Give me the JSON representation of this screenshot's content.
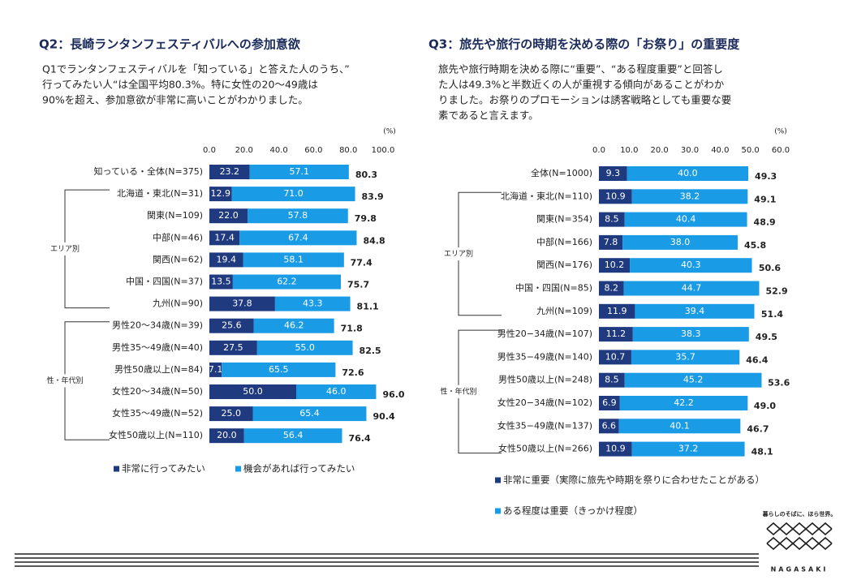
{
  "chart_data": [
    {
      "type": "stacked-barh",
      "title": "Q2：長崎ランタンフェスティバルへの参加意欲",
      "description": [
        "Q1でランタンフェスティバルを「知っている」と答えた人のうち、”",
        "行ってみたい人“は全国平均80.3%。特に女性の20～49歳は",
        "90%を超え、参加意欲が非常に高いことがわかりました。"
      ],
      "unit_label": "(%)",
      "categories": [
        "知っている・全体(N=375)",
        "北海道・東北(N=31)",
        "関東(N=109)",
        "中部(N=46)",
        "関西(N=62)",
        "中国・四国(N=37)",
        "九州(N=90)",
        "男性20～34歳(N=39)",
        "男性35～49歳(N=40)",
        "男性50歳以上(N=84)",
        "女性20～34歳(N=50)",
        "女性35～49歳(N=52)",
        "女性50歳以上(N=110)"
      ],
      "group_labels": [
        "エリア別",
        "性・年代別"
      ],
      "series": [
        {
          "name": "非常に行ってみたい",
          "color": "#1f3a7e",
          "values": [
            23.2,
            12.9,
            22.0,
            17.4,
            19.4,
            13.5,
            37.8,
            25.6,
            27.5,
            7.1,
            50.0,
            25.0,
            20.0
          ],
          "value_labels": [
            "23.2",
            "12.9",
            "22.0",
            "17.4",
            "19.4",
            "13.5",
            "37.8",
            "25.6",
            "27.5",
            "7.1",
            "50.0",
            "25.0",
            "20.0"
          ]
        },
        {
          "name": "機会があれば行ってみたい",
          "color": "#1a9be6",
          "values": [
            57.1,
            71.0,
            57.8,
            67.4,
            58.1,
            62.2,
            43.3,
            46.2,
            55.0,
            65.5,
            46.0,
            65.4,
            56.4
          ],
          "value_labels": [
            "57.1",
            "71.0",
            "57.8",
            "67.4",
            "58.1",
            "62.2",
            "43.3",
            "46.2",
            "55.0",
            "65.5",
            "46.0",
            "65.4",
            "56.4"
          ]
        }
      ],
      "totals": [
        80.3,
        83.9,
        79.8,
        84.8,
        77.4,
        75.7,
        81.1,
        71.8,
        82.5,
        72.6,
        96.0,
        90.4,
        76.4
      ],
      "total_labels": [
        "80.3",
        "83.9",
        "79.8",
        "84.8",
        "77.4",
        "75.7",
        "81.1",
        "71.8",
        "82.5",
        "72.6",
        "96.0",
        "90.4",
        "76.4"
      ],
      "xlim": [
        0,
        100
      ],
      "xticks": [
        {
          "value": 0,
          "label": "0.0"
        },
        {
          "value": 20,
          "label": "20.0"
        },
        {
          "value": 40,
          "label": "40.0"
        },
        {
          "value": 60,
          "label": "60.0"
        },
        {
          "value": 80,
          "label": "80.0"
        },
        {
          "value": 100,
          "label": "100.0"
        }
      ],
      "legend": "bottom"
    },
    {
      "type": "stacked-barh",
      "title": "Q3：旅先や旅行の時期を決める際の「お祭り」の重要度",
      "description": [
        "旅先や旅行時期を決める際に“重要”、“ある程度重要”と回答し",
        "た人は49.3%と半数近くの人が重視する傾向があることがわか",
        "りました。お祭りのプロモーションは誘客戦略としても重要な要",
        "素であると言えます。"
      ],
      "unit_label": "(%)",
      "categories": [
        "全体(N=1000)",
        "北海道・東北(N=110)",
        "関東(N=354)",
        "中部(N=166)",
        "関西(N=176)",
        "中国・四国(N=85)",
        "九州(N=109)",
        "男性20−34歳(N=107)",
        "男性35−49歳(N=140)",
        "男性50歳以上(N=248)",
        "女性20−34歳(N=102)",
        "女性35−49歳(N=137)",
        "女性50歳以上(N=266)"
      ],
      "group_labels": [
        "エリア別",
        "性・年代別"
      ],
      "series": [
        {
          "name": "非常に重要（実際に旅先や時期を祭りに合わせたことがある）",
          "color": "#1f3a7e",
          "values": [
            9.3,
            10.9,
            8.5,
            7.8,
            10.2,
            8.2,
            11.9,
            11.2,
            10.7,
            8.5,
            6.9,
            6.6,
            10.9
          ],
          "value_labels": [
            "9.3",
            "10.9",
            "8.5",
            "7.8",
            "10.2",
            "8.2",
            "11.9",
            "11.2",
            "10.7",
            "8.5",
            "6.9",
            "6.6",
            "10.9"
          ]
        },
        {
          "name": "ある程度は重要（きっかけ程度）",
          "color": "#1a9be6",
          "values": [
            40.0,
            38.2,
            40.4,
            38.0,
            40.3,
            44.7,
            39.4,
            38.3,
            35.7,
            45.2,
            42.2,
            40.1,
            37.2
          ],
          "value_labels": [
            "40.0",
            "38.2",
            "40.4",
            "38.0",
            "40.3",
            "44.7",
            "39.4",
            "38.3",
            "35.7",
            "45.2",
            "42.2",
            "40.1",
            "37.2"
          ]
        }
      ],
      "totals": [
        49.3,
        49.1,
        48.9,
        45.8,
        50.6,
        52.9,
        51.4,
        49.5,
        46.4,
        53.6,
        49.0,
        46.7,
        48.1
      ],
      "total_labels": [
        "49.3",
        "49.1",
        "48.9",
        "45.8",
        "50.6",
        "52.9",
        "51.4",
        "49.5",
        "46.4",
        "53.6",
        "49.0",
        "46.7",
        "48.1"
      ],
      "xlim": [
        0,
        60
      ],
      "xticks": [
        {
          "value": 0,
          "label": "0.0"
        },
        {
          "value": 10,
          "label": "10.0"
        },
        {
          "value": 20,
          "label": "20.0"
        },
        {
          "value": 30,
          "label": "30.0"
        },
        {
          "value": 40,
          "label": "40.0"
        },
        {
          "value": 50,
          "label": "50.0"
        },
        {
          "value": 60,
          "label": "60.0"
        }
      ],
      "legend": "bottom-left"
    }
  ],
  "logo": {
    "tagline": "暮らしのそばに、ほら世界。",
    "name": "NAGASAKI"
  }
}
